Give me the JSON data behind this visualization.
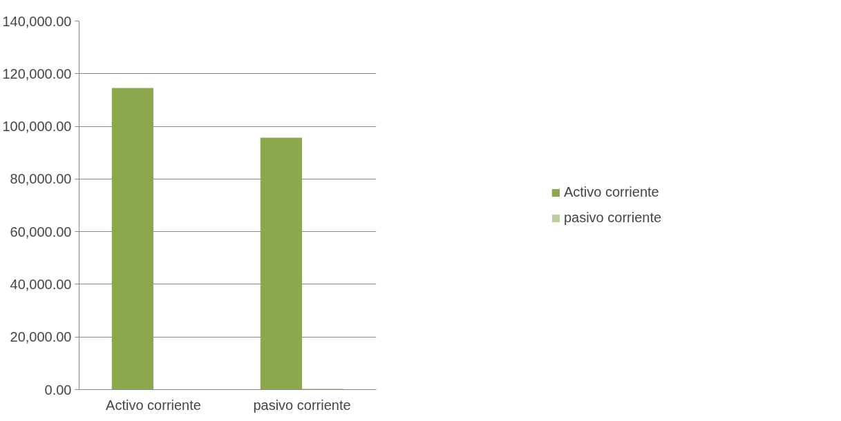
{
  "chart_data": {
    "type": "bar",
    "categories": [
      "Activo corriente",
      "pasivo corriente"
    ],
    "series": [
      {
        "name": "Activo corriente",
        "color": "#8ba84c",
        "values": [
          114600,
          95700
        ]
      },
      {
        "name": "pasivo corriente",
        "color": "#bccf9a",
        "values": [
          0,
          300
        ]
      }
    ],
    "ylim": [
      0,
      140000
    ],
    "yticks": [
      {
        "value": 0,
        "label": "0.00"
      },
      {
        "value": 20000,
        "label": "20,000.00"
      },
      {
        "value": 40000,
        "label": "40,000.00"
      },
      {
        "value": 60000,
        "label": "60,000.00"
      },
      {
        "value": 80000,
        "label": "80,000.00"
      },
      {
        "value": 100000,
        "label": "100,000.00"
      },
      {
        "value": 120000,
        "label": "120,000.00"
      },
      {
        "value": 140000,
        "label": "140,000.00"
      }
    ],
    "grid": "y",
    "legend": "right"
  }
}
